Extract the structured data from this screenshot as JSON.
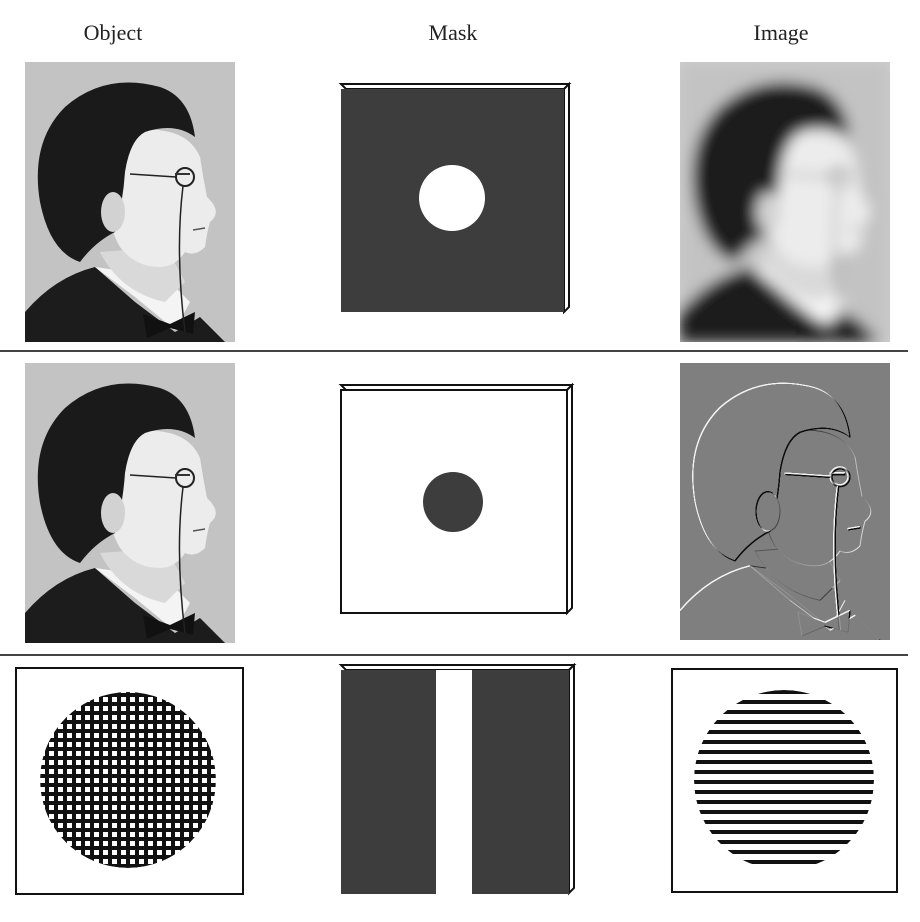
{
  "headers": {
    "object": "Object",
    "mask": "Mask",
    "image": "Image"
  },
  "rows": [
    {
      "object": "portrait-photo",
      "mask": "low-pass-filter-mask",
      "image": "blurred-portrait"
    },
    {
      "object": "portrait-photo",
      "mask": "high-pass-filter-mask",
      "image": "edge-enhanced-portrait"
    },
    {
      "object": "crossed-grating-disk",
      "mask": "vertical-slit-mask",
      "image": "horizontal-line-disk"
    }
  ],
  "colors": {
    "mask_dark": "#3d3d3d",
    "ink": "#111111",
    "paper": "#ffffff",
    "divider": "#444444"
  }
}
